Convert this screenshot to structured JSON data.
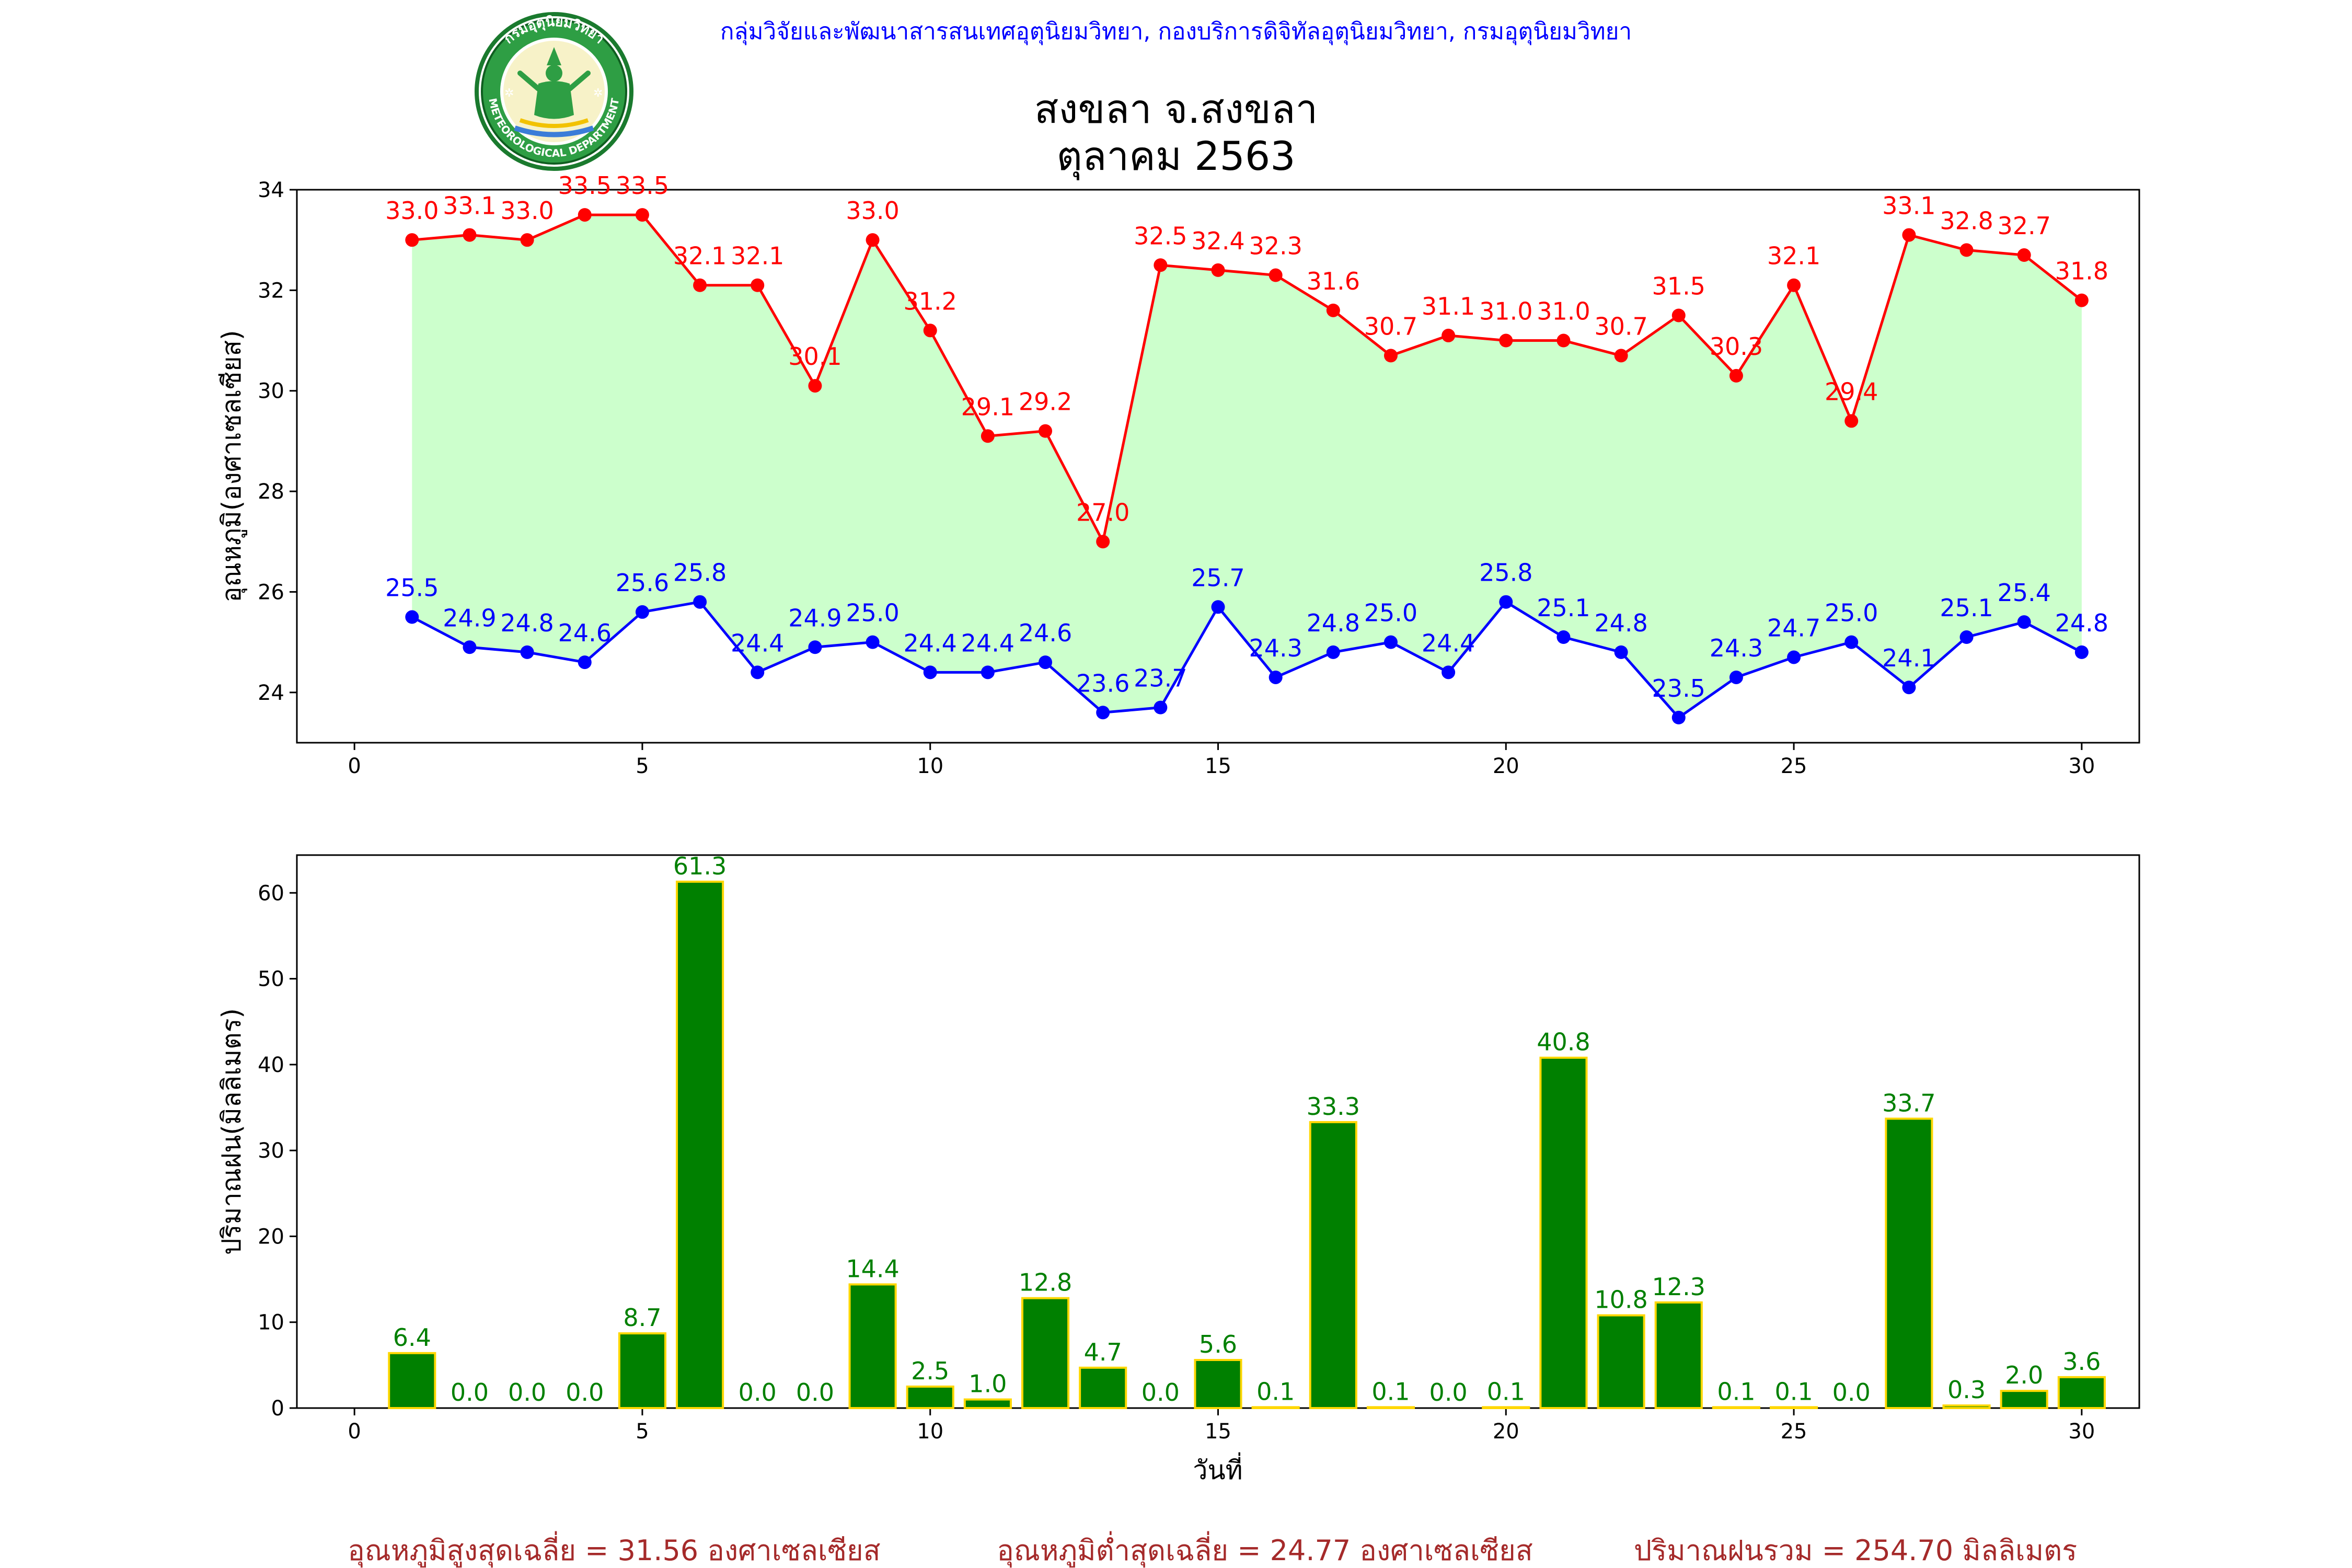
{
  "header": {
    "credit": "กลุ่มวิจัยและพัฒนาสารสนเทศอุตุนิยมวิทยา, กองบริการดิจิทัลอุตุนิยมวิทยา, กรมอุตุนิยมวิทยา",
    "title_line1": "สงขลา จ.สงขลา",
    "title_line2": "ตุลาคม 2563"
  },
  "logo": {
    "ring_text_top": "กรมอุตุนิยมวิทยา",
    "ring_text_bottom": "METEOROLOGICAL DEPARTMENT"
  },
  "footer": {
    "avg_max": "อุณหภูมิสูงสุดเฉลี่ย = 31.56 องศาเซลเซียส",
    "avg_min": "อุณหภูมิต่ำสุดเฉลี่ย = 24.77 องศาเซลเซียส",
    "total_rain": "ปริมาณฝนรวม = 254.70 มิลลิเมตร"
  },
  "colors": {
    "max_line": "#ff0000",
    "min_line": "#0000ff",
    "fill": "#ccffcc",
    "bar": "#008000",
    "bar_edge": "#ffd700",
    "bar_label": "#008000",
    "footer_text": "#a52a2a",
    "credit_text": "#0000ff"
  },
  "chart_data": [
    {
      "type": "line",
      "ylabel": "อุณหภูมิ(องศาเซลเซียส)",
      "xlabel": "",
      "xlim": [
        -1,
        31
      ],
      "ylim": [
        23,
        34
      ],
      "xticks": [
        0,
        5,
        10,
        15,
        20,
        25,
        30
      ],
      "yticks": [
        24,
        26,
        28,
        30,
        32,
        34
      ],
      "x": [
        1,
        2,
        3,
        4,
        5,
        6,
        7,
        8,
        9,
        10,
        11,
        12,
        13,
        14,
        15,
        16,
        17,
        18,
        19,
        20,
        21,
        22,
        23,
        24,
        25,
        26,
        27,
        28,
        29,
        30
      ],
      "series": [
        {
          "key": "max",
          "values": [
            33.0,
            33.1,
            33.0,
            33.5,
            33.5,
            32.1,
            32.1,
            30.1,
            33.0,
            31.2,
            29.1,
            29.2,
            27.0,
            32.5,
            32.4,
            32.3,
            31.6,
            30.7,
            31.1,
            31.0,
            31.0,
            30.7,
            31.5,
            30.3,
            32.1,
            29.4,
            33.1,
            32.8,
            32.7,
            31.8
          ]
        },
        {
          "key": "min",
          "values": [
            25.5,
            24.9,
            24.8,
            24.6,
            25.6,
            25.8,
            24.4,
            24.9,
            25.0,
            24.4,
            24.4,
            24.6,
            23.6,
            23.7,
            25.7,
            24.3,
            24.8,
            25.0,
            24.4,
            25.8,
            25.1,
            24.8,
            23.5,
            24.3,
            24.7,
            25.0,
            24.1,
            25.1,
            25.4,
            24.8
          ]
        }
      ]
    },
    {
      "type": "bar",
      "ylabel": "ปริมาณฝน(มิลลิเมตร)",
      "xlabel": "วันที่",
      "xlim": [
        -1,
        31
      ],
      "ylim": [
        0,
        64.4
      ],
      "xticks": [
        0,
        5,
        10,
        15,
        20,
        25,
        30
      ],
      "yticks": [
        0,
        10,
        20,
        30,
        40,
        50,
        60
      ],
      "x": [
        1,
        2,
        3,
        4,
        5,
        6,
        7,
        8,
        9,
        10,
        11,
        12,
        13,
        14,
        15,
        16,
        17,
        18,
        19,
        20,
        21,
        22,
        23,
        24,
        25,
        26,
        27,
        28,
        29,
        30
      ],
      "values": [
        6.4,
        0.0,
        0.0,
        0.0,
        8.7,
        61.3,
        0.0,
        0.0,
        14.4,
        2.5,
        1.0,
        12.8,
        4.7,
        0.0,
        5.6,
        0.1,
        33.3,
        0.1,
        0.0,
        0.1,
        40.8,
        10.8,
        12.3,
        0.1,
        0.1,
        0.0,
        33.7,
        0.3,
        2.0,
        3.6
      ]
    }
  ]
}
